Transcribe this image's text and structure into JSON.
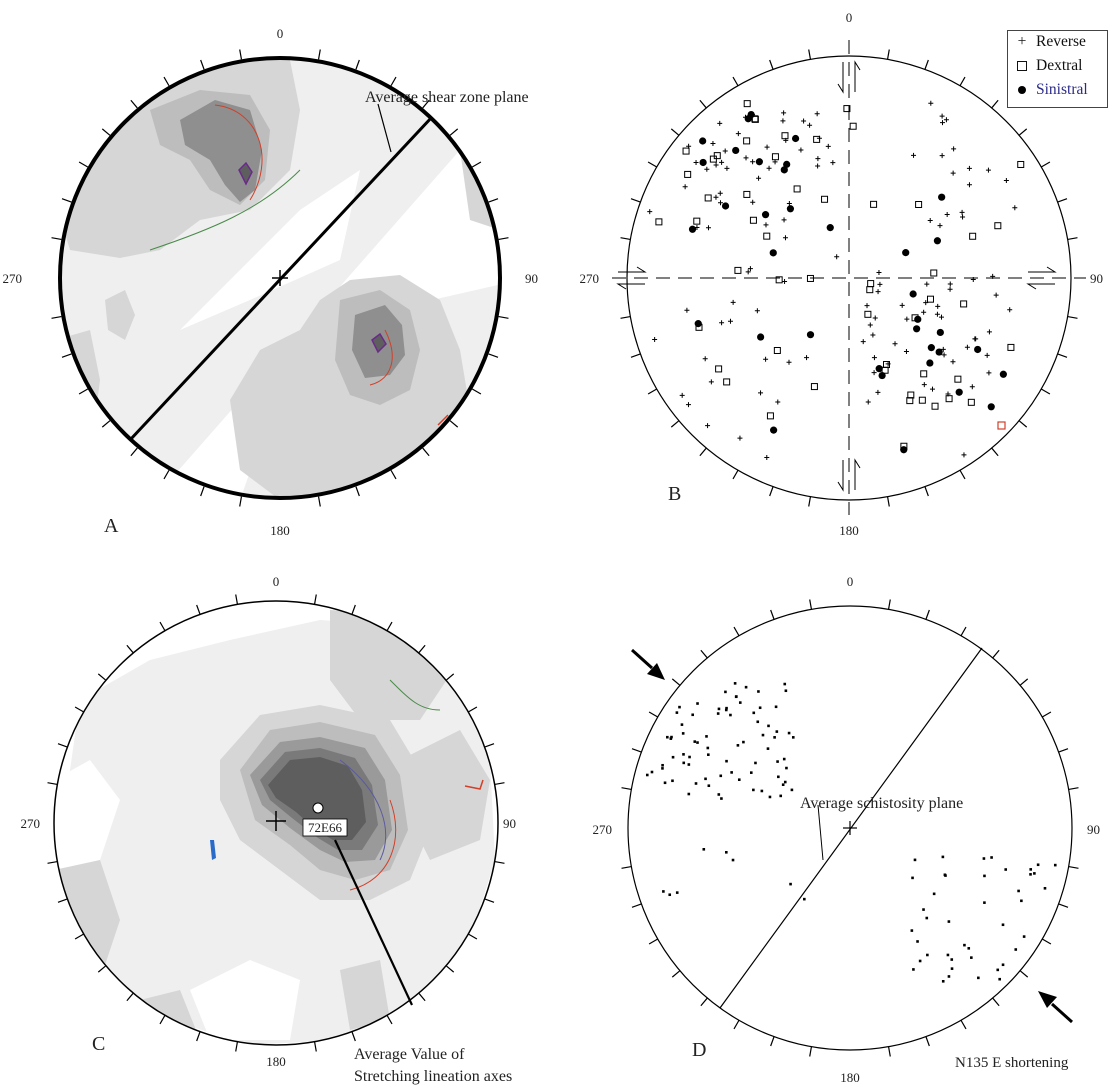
{
  "compass": {
    "north": "0",
    "east": "90",
    "south": "180",
    "west": "270"
  },
  "panels": {
    "A": {
      "letter": "A",
      "annotation": "Average shear zone plane"
    },
    "B": {
      "letter": "B"
    },
    "C": {
      "letter": "C",
      "pole_label": "72E66",
      "annotation_line1": "Average Value of",
      "annotation_line2": "Stretching lineation axes"
    },
    "D": {
      "letter": "D",
      "annotation": "Average schistosity plane",
      "shortening_label": "N135 E shortening"
    }
  },
  "legend": {
    "items": [
      {
        "symbol": "cross-icon",
        "label": "Reverse"
      },
      {
        "symbol": "square-icon",
        "label": "Dextral"
      },
      {
        "symbol": "dot-icon",
        "label": "Sinistral"
      }
    ]
  },
  "colors": {
    "contour_light": "#efefef",
    "contour_mid": "#d6d6d6",
    "contour_midDark": "#bdbdbd",
    "contour_dark": "#8f8f8f",
    "contour_darkest": "#5e5e5e",
    "red_line": "#d0402a",
    "green_line": "#4a8a4a",
    "blue_line": "#2a6ac8",
    "sinistral_text": "#2a2a8a"
  }
}
